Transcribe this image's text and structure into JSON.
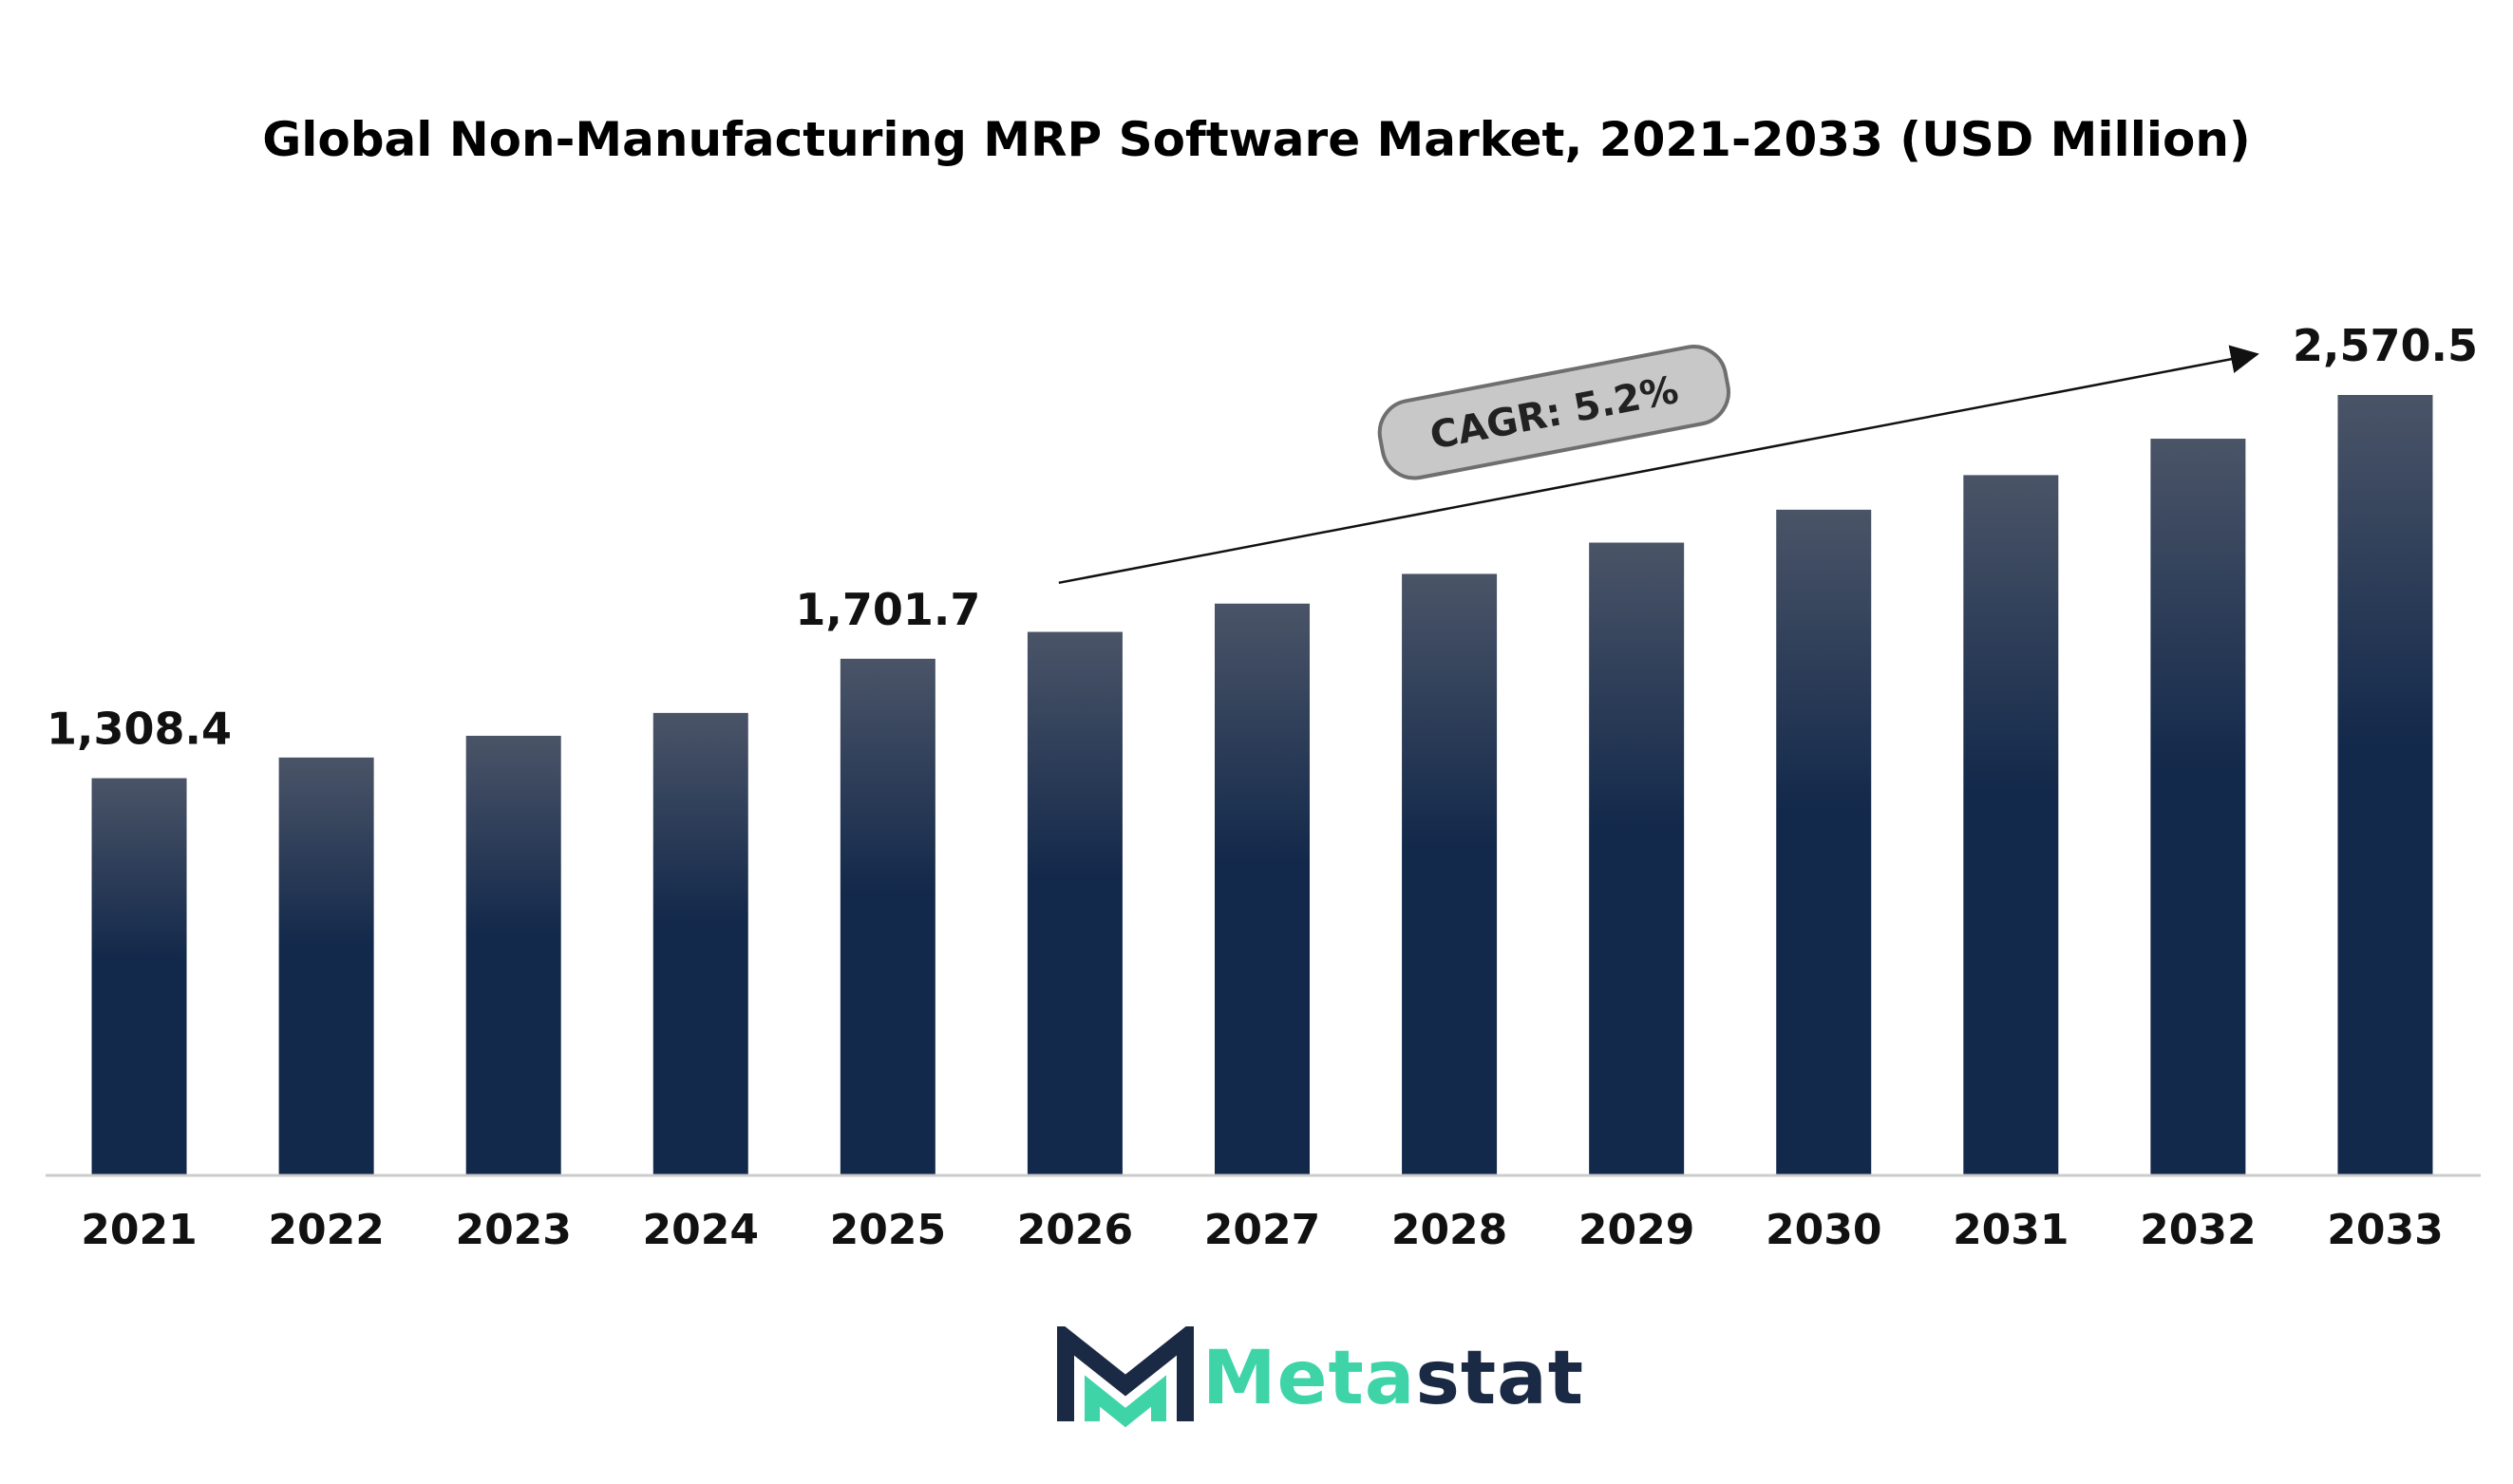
{
  "chart_data": {
    "type": "bar",
    "title": "Global Non-Manufacturing MRP Software Market, 2021-2033 (USD Million)",
    "categories": [
      "2021",
      "2022",
      "2023",
      "2024",
      "2025",
      "2026",
      "2027",
      "2028",
      "2029",
      "2030",
      "2031",
      "2032",
      "2033"
    ],
    "values": [
      1308.4,
      1376.4,
      1448.0,
      1523.3,
      1701.7,
      1790.2,
      1883.3,
      1981.2,
      2084.2,
      2192.6,
      2306.6,
      2426.5,
      2570.5
    ],
    "data_labels": [
      {
        "category": "2021",
        "text": "1,308.4"
      },
      {
        "category": "2025",
        "text": "1,701.7"
      },
      {
        "category": "2033",
        "text": "2,570.5"
      }
    ],
    "annotation": "CAGR: 5.2%",
    "xlabel": "",
    "ylabel": "",
    "ylim": [
      0,
      2700
    ],
    "grid": false,
    "legend": "none",
    "colors": {
      "bar_top": "#4a5467",
      "bar_bottom": "#13294b",
      "baseline": "#cccccc",
      "annotation_fill": "#c8c8c8",
      "annotation_stroke": "#6f6f6f"
    }
  },
  "logo": {
    "text_part1": "Meta",
    "text_part2": "stat",
    "colors": {
      "teal": "#3fd4a8",
      "navy": "#1b2a44"
    }
  }
}
